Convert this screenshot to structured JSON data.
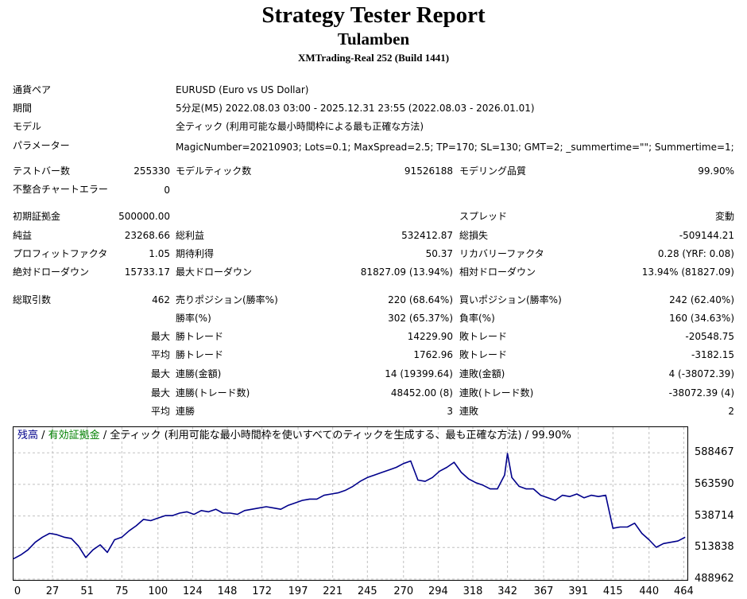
{
  "header": {
    "title": "Strategy Tester Report",
    "subtitle": "Tulamben",
    "build": "XMTrading-Real 252 (Build 1441)"
  },
  "settings": {
    "symbol_label": "通貨ペア",
    "symbol_value": "EURUSD (Euro vs US Dollar)",
    "period_label": "期間",
    "period_value": "5分足(M5) 2022.08.03 03:00 - 2025.12.31 23:55 (2022.08.03 - 2026.01.01)",
    "model_label": "モデル",
    "model_value": "全ティック (利用可能な最小時間枠による最も正確な方法)",
    "params_label": "パラメーター",
    "params_value": "MagicNumber=20210903; Lots=0.1; MaxSpread=2.5; TP=170; SL=130; GMT=2; _summertime=\"\"; Summertime=1;"
  },
  "stats": {
    "bars_label": "テストバー数",
    "bars_value": "255330",
    "ticks_label": "モデルティック数",
    "ticks_value": "91526188",
    "quality_label": "モデリング品質",
    "quality_value": "99.90%",
    "mismatch_label": "不整合チャートエラー",
    "mismatch_value": "0",
    "deposit_label": "初期証拠金",
    "deposit_value": "500000.00",
    "spread_label": "スプレッド",
    "spread_value": "変動",
    "net_label": "純益",
    "net_value": "23268.66",
    "gross_profit_label": "総利益",
    "gross_profit_value": "532412.87",
    "gross_loss_label": "総損失",
    "gross_loss_value": "-509144.21",
    "pf_label": "プロフィットファクタ",
    "pf_value": "1.05",
    "expected_label": "期待利得",
    "expected_value": "50.37",
    "recovery_label": "リカバリーファクタ",
    "recovery_value": "0.28 (YRF: 0.08)",
    "abs_dd_label": "絶対ドローダウン",
    "abs_dd_value": "15733.17",
    "max_dd_label": "最大ドローダウン",
    "max_dd_value": "81827.09 (13.94%)",
    "rel_dd_label": "相対ドローダウン",
    "rel_dd_value": "13.94% (81827.09)",
    "total_trades_label": "総取引数",
    "total_trades_value": "462",
    "short_label": "売りポジション(勝率%)",
    "short_value": "220 (68.64%)",
    "long_label": "買いポジション(勝率%)",
    "long_value": "242 (62.40%)",
    "win_label": "勝率(%)",
    "win_value": "302 (65.37%)",
    "loss_label": "負率(%)",
    "loss_value": "160 (34.63%)",
    "max_label": "最大",
    "avg_label": "平均",
    "largest_win_label": "勝トレード",
    "largest_win_value": "14229.90",
    "largest_loss_label": "敗トレード",
    "largest_loss_value": "-20548.75",
    "avg_win_label": "勝トレード",
    "avg_win_value": "1762.96",
    "avg_loss_label": "敗トレード",
    "avg_loss_value": "-3182.15",
    "max_consec_win_label": "連勝(金額)",
    "max_consec_win_value": "14 (19399.64)",
    "max_consec_loss_label": "連敗(金額)",
    "max_consec_loss_value": "4 (-38072.39)",
    "max_consec_profit_label": "連勝(トレード数)",
    "max_consec_profit_value": "48452.00 (8)",
    "max_consec_loss2_label": "連敗(トレード数)",
    "max_consec_loss2_value": "-38072.39 (4)",
    "avg_consec_win_label": "連勝",
    "avg_consec_win_value": "3",
    "avg_consec_loss_label": "連敗",
    "avg_consec_loss_value": "2"
  },
  "chart_legend": {
    "balance": "残高",
    "sep1": " / ",
    "equity": "有効証拠金",
    "rest": " / 全ティック (利用可能な最小時間枠を使いすべてのティックを生成する、最も正確な方法) / 99.90%"
  },
  "colors": {
    "balance": "#00008b",
    "equity": "#008000",
    "grid": "#c0c0c0"
  },
  "chart_data": {
    "type": "line",
    "series": [
      {
        "name": "残高",
        "x": [
          0,
          5,
          10,
          15,
          20,
          25,
          30,
          35,
          40,
          45,
          50,
          55,
          60,
          65,
          70,
          75,
          80,
          85,
          90,
          95,
          100,
          105,
          110,
          115,
          120,
          125,
          130,
          135,
          140,
          145,
          150,
          155,
          160,
          165,
          170,
          175,
          180,
          185,
          190,
          195,
          200,
          205,
          210,
          215,
          220,
          225,
          230,
          235,
          240,
          245,
          250,
          255,
          260,
          265,
          270,
          275,
          280,
          285,
          290,
          295,
          300,
          305,
          310,
          315,
          320,
          325,
          330,
          335,
          340,
          342,
          345,
          350,
          355,
          360,
          365,
          370,
          375,
          380,
          385,
          390,
          395,
          400,
          405,
          410,
          415,
          420,
          425,
          430,
          435,
          440,
          445,
          450,
          455,
          460,
          465
        ],
        "values": [
          505000,
          508000,
          512000,
          518000,
          522000,
          525000,
          524000,
          522000,
          521000,
          515000,
          506000,
          512000,
          516000,
          510000,
          520000,
          522000,
          527000,
          531000,
          536000,
          535000,
          537000,
          539000,
          539000,
          541000,
          542000,
          540000,
          543000,
          542000,
          544000,
          541000,
          541000,
          540000,
          543000,
          544000,
          545000,
          546000,
          545000,
          544000,
          547000,
          549000,
          551000,
          552000,
          552000,
          555000,
          556000,
          557000,
          559000,
          562000,
          566000,
          569000,
          571000,
          573000,
          575000,
          577000,
          580000,
          582000,
          567000,
          566000,
          569000,
          574000,
          577000,
          581000,
          573000,
          568000,
          565000,
          563000,
          560000,
          560000,
          571000,
          588000,
          569000,
          562000,
          560000,
          560000,
          555000,
          553000,
          551000,
          555000,
          554000,
          556000,
          553000,
          555000,
          554000,
          555000,
          529000,
          530000,
          530000,
          533000,
          525000,
          520000,
          514000,
          517000,
          518000,
          519000,
          522000
        ]
      }
    ],
    "x_ticks": [
      0,
      27,
      51,
      75,
      100,
      124,
      148,
      172,
      197,
      221,
      245,
      270,
      294,
      318,
      342,
      367,
      391,
      415,
      440,
      464
    ],
    "y_ticks": [
      588467,
      563590,
      538714,
      513838,
      488962
    ],
    "xlim": [
      0,
      466
    ],
    "ylim": [
      488962,
      598000
    ],
    "grid": true
  }
}
